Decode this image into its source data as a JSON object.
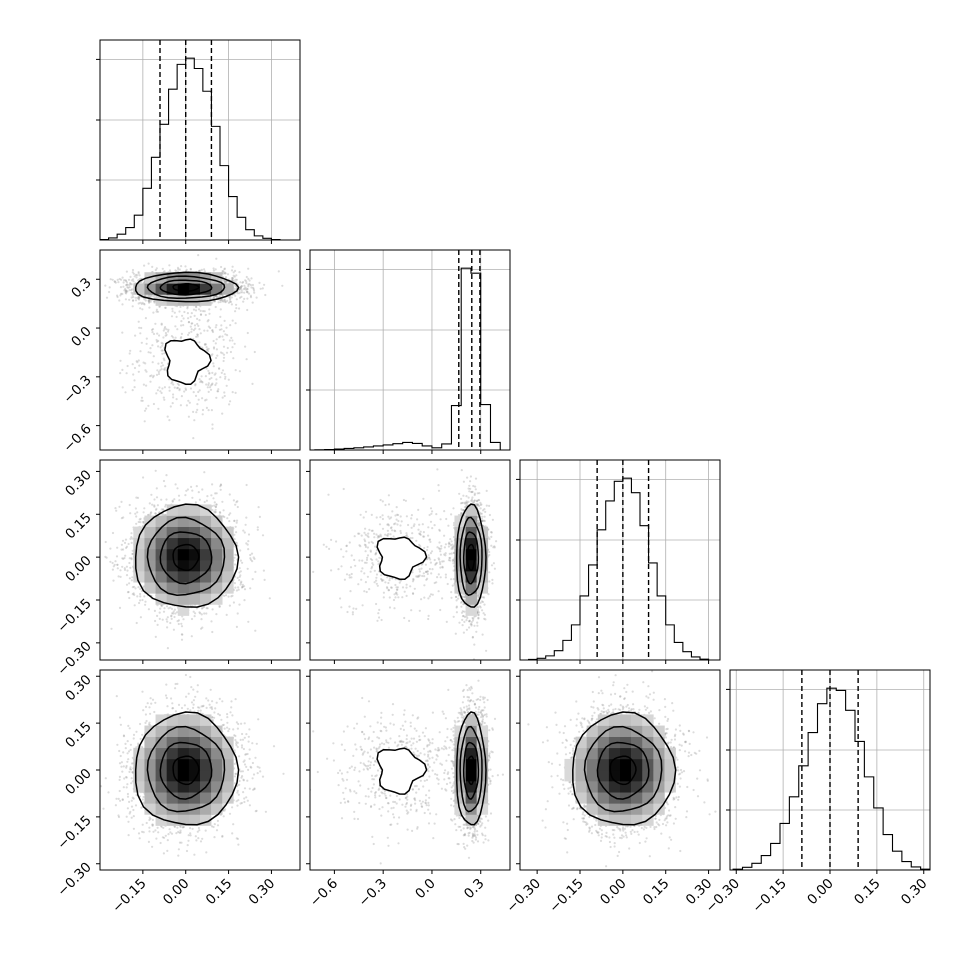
{
  "chart_data": {
    "type": "corner",
    "parameters": [
      "",
      "",
      "",
      ""
    ],
    "axes": [
      {
        "range": [
          -0.3,
          0.4
        ],
        "ticks": [
          -0.15,
          0.0,
          0.15,
          0.3
        ],
        "tick_labels": [
          "−0.15",
          "0.00",
          "0.15",
          "0.30"
        ]
      },
      {
        "range": [
          -0.75,
          0.48
        ],
        "ticks": [
          -0.6,
          -0.3,
          0.0,
          0.3
        ],
        "tick_labels": [
          "−0.6",
          "−0.3",
          "0.0",
          "0.3"
        ]
      },
      {
        "range": [
          -0.36,
          0.34
        ],
        "ticks": [
          -0.3,
          -0.15,
          0.0,
          0.15,
          0.3
        ],
        "tick_labels": [
          "−0.30",
          "−0.15",
          "0.00",
          "0.15",
          "0.30"
        ]
      },
      {
        "range": [
          -0.32,
          0.32
        ],
        "ticks": [
          -0.3,
          -0.15,
          0.0,
          0.15,
          0.3
        ],
        "tick_labels": [
          "−0.30",
          "−0.15",
          "0.00",
          "0.15",
          "0.30"
        ]
      }
    ],
    "histograms": [
      {
        "param": 0,
        "quantiles": [
          -0.09,
          0.0,
          0.09
        ],
        "bin_edges": [
          -0.3,
          -0.27,
          -0.24,
          -0.21,
          -0.18,
          -0.15,
          -0.12,
          -0.09,
          -0.06,
          -0.03,
          0.0,
          0.03,
          0.06,
          0.09,
          0.12,
          0.15,
          0.18,
          0.21,
          0.24,
          0.27,
          0.3,
          0.33
        ],
        "counts": [
          2,
          10,
          28,
          60,
          120,
          250,
          400,
          560,
          730,
          850,
          880,
          830,
          720,
          550,
          360,
          210,
          110,
          50,
          20,
          8,
          2
        ]
      },
      {
        "param": 1,
        "quantiles": [
          0.165,
          0.245,
          0.295
        ],
        "bin_edges": [
          -0.72,
          -0.66,
          -0.6,
          -0.54,
          -0.48,
          -0.42,
          -0.36,
          -0.3,
          -0.24,
          -0.18,
          -0.12,
          -0.06,
          0.0,
          0.06,
          0.12,
          0.18,
          0.24,
          0.3,
          0.36,
          0.42
        ],
        "counts": [
          2,
          5,
          10,
          15,
          22,
          30,
          40,
          50,
          62,
          75,
          65,
          40,
          22,
          60,
          440,
          1800,
          1750,
          450,
          75
        ]
      },
      {
        "param": 2,
        "quantiles": [
          -0.09,
          0.0,
          0.09
        ],
        "bin_edges": [
          -0.33,
          -0.3,
          -0.27,
          -0.24,
          -0.21,
          -0.18,
          -0.15,
          -0.12,
          -0.09,
          -0.06,
          -0.03,
          0.0,
          0.03,
          0.06,
          0.09,
          0.12,
          0.15,
          0.18,
          0.21,
          0.24,
          0.27,
          0.3
        ],
        "counts": [
          3,
          8,
          20,
          45,
          95,
          170,
          310,
          460,
          630,
          770,
          865,
          880,
          810,
          650,
          470,
          310,
          170,
          85,
          40,
          15,
          4
        ]
      },
      {
        "param": 3,
        "quantiles": [
          -0.09,
          0.0,
          0.09
        ],
        "bin_edges": [
          -0.31,
          -0.28,
          -0.25,
          -0.22,
          -0.19,
          -0.16,
          -0.13,
          -0.1,
          -0.07,
          -0.04,
          -0.01,
          0.02,
          0.05,
          0.08,
          0.11,
          0.14,
          0.17,
          0.2,
          0.23,
          0.26,
          0.29,
          0.32
        ],
        "counts": [
          4,
          12,
          30,
          65,
          120,
          210,
          330,
          470,
          620,
          750,
          820,
          810,
          720,
          580,
          420,
          280,
          160,
          85,
          38,
          14,
          4
        ]
      }
    ],
    "pairs": [
      {
        "x": 0,
        "y": 1,
        "modes": [
          {
            "cx": 0.0,
            "cy": 0.25,
            "sx": 0.09,
            "sy": 0.045,
            "w": 0.83
          },
          {
            "cx": 0.0,
            "cy": -0.2,
            "sx": 0.09,
            "sy": 0.17,
            "w": 0.17
          }
        ]
      },
      {
        "x": 0,
        "y": 2,
        "modes": [
          {
            "cx": 0.0,
            "cy": 0.0,
            "sx": 0.09,
            "sy": 0.09,
            "w": 1.0
          }
        ]
      },
      {
        "x": 1,
        "y": 2,
        "modes": [
          {
            "cx": 0.24,
            "cy": 0.0,
            "sx": 0.045,
            "sy": 0.09,
            "w": 0.83
          },
          {
            "cx": -0.2,
            "cy": 0.0,
            "sx": 0.17,
            "sy": 0.09,
            "w": 0.17
          }
        ]
      },
      {
        "x": 0,
        "y": 3,
        "modes": [
          {
            "cx": 0.0,
            "cy": 0.0,
            "sx": 0.09,
            "sy": 0.09,
            "w": 1.0
          }
        ]
      },
      {
        "x": 1,
        "y": 3,
        "modes": [
          {
            "cx": 0.24,
            "cy": 0.0,
            "sx": 0.045,
            "sy": 0.09,
            "w": 0.83
          },
          {
            "cx": -0.2,
            "cy": 0.0,
            "sx": 0.17,
            "sy": 0.09,
            "w": 0.17
          }
        ]
      },
      {
        "x": 2,
        "y": 3,
        "modes": [
          {
            "cx": 0.0,
            "cy": 0.0,
            "sx": 0.09,
            "sy": 0.09,
            "w": 1.0
          }
        ]
      }
    ],
    "grid": true
  }
}
